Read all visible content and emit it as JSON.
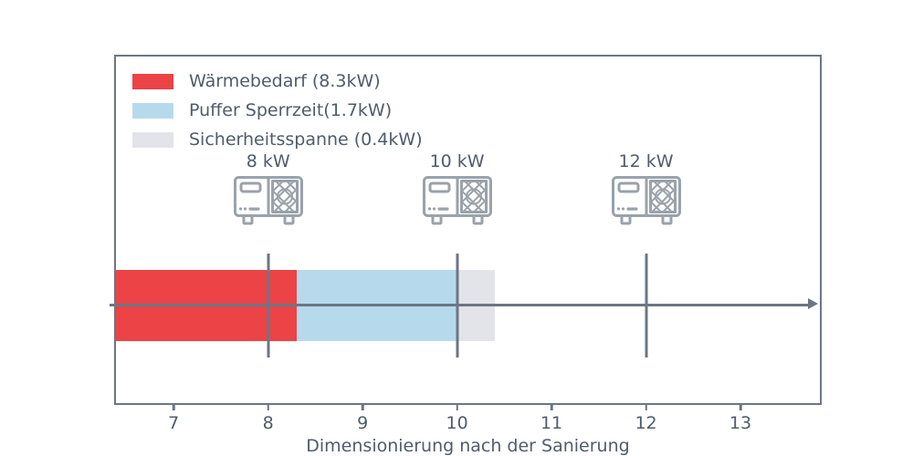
{
  "chart_data": {
    "type": "bar",
    "orientation": "horizontal-stacked",
    "title": "",
    "xlabel": "Dimensionierung nach der Sanierung",
    "ylabel": "",
    "xlim": [
      6.37,
      13.86
    ],
    "x_ticks": [
      7,
      8,
      9,
      10,
      11,
      12,
      13
    ],
    "grid": false,
    "legend_position": "upper-left",
    "bar": {
      "segments": [
        {
          "name": "Wärmebedarf",
          "value_kw": 8.3,
          "start": 6.37,
          "end": 8.3,
          "color": "#ec4347"
        },
        {
          "name": "Puffer Sperrzeit",
          "value_kw": 1.7,
          "start": 8.3,
          "end": 10.0,
          "color": "#b6daec"
        },
        {
          "name": "Sicherheitsspanne",
          "value_kw": 0.4,
          "start": 10.0,
          "end": 10.4,
          "color": "#e3e4e9"
        }
      ]
    },
    "markers": [
      {
        "label": "8 kW",
        "x": 8,
        "icon": "heat-pump"
      },
      {
        "label": "10 kW",
        "x": 10,
        "icon": "heat-pump"
      },
      {
        "label": "12 kW",
        "x": 12,
        "icon": "heat-pump"
      }
    ],
    "baseline_arrow": {
      "y_center": true,
      "direction": "right"
    }
  },
  "legend": {
    "items": [
      {
        "label": "Wärmebedarf (8.3kW)",
        "color": "#ec4347"
      },
      {
        "label": "Puffer Sperrzeit(1.7kW)",
        "color": "#b6daec"
      },
      {
        "label": "Sicherheitsspanne (0.4kW)",
        "color": "#e3e4e9"
      }
    ]
  },
  "colors": {
    "background": "#ffffff",
    "lines": "#6c7684",
    "text": "#4f5c6d",
    "icon": "#9aa2ab"
  }
}
